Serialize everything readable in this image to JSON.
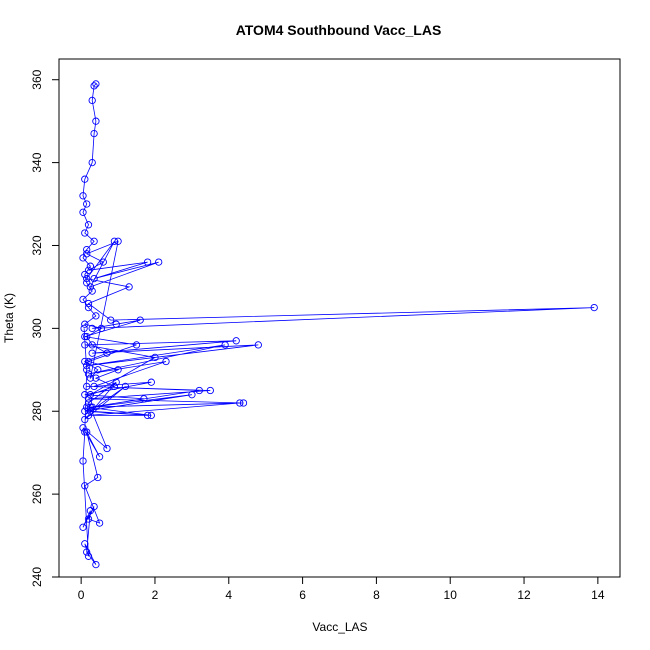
{
  "chart_data": {
    "type": "line",
    "title": "ATOM4 Southbound Vacc_LAS",
    "xlabel": "Vacc_LAS",
    "ylabel": "Theta (K)",
    "xlim": [
      -0.6,
      14.6
    ],
    "ylim": [
      240,
      365
    ],
    "xticks": [
      0,
      2,
      4,
      6,
      8,
      10,
      12,
      14
    ],
    "yticks": [
      240,
      260,
      280,
      300,
      320,
      340,
      360
    ],
    "grid": false,
    "legend": "none",
    "marker": "open-circle",
    "color": "#0000ff",
    "series": [
      {
        "x": [
          0.4,
          0.35,
          0.3,
          0.4,
          0.35,
          0.3,
          0.1,
          0.05,
          0.15,
          0.05,
          0.2,
          0.1,
          0.35,
          0.15,
          0.05,
          0.25,
          0.1,
          0.15,
          0.3,
          0.05,
          0.2,
          0.4,
          0.1,
          0.55,
          0.15,
          0.3,
          0.7,
          0.1,
          0.45,
          0.25,
          1.0,
          0.15,
          0.6,
          0.2,
          1.8,
          0.35,
          2.1,
          0.25,
          0.9,
          0.15,
          1.3,
          0.2,
          0.8,
          13.9,
          0.3,
          0.95,
          1.6,
          0.1,
          1.5,
          0.2,
          1.0,
          0.4,
          0.9,
          0.25,
          2.0,
          0.1,
          4.2,
          0.3,
          4.8,
          0.15,
          3.9,
          0.2,
          2.3,
          0.35,
          1.9,
          0.1,
          1.7,
          0.25,
          3.2,
          0.15,
          3.5,
          0.2,
          4.4,
          0.3,
          3.0,
          0.1,
          1.8,
          0.2,
          4.3,
          0.15,
          1.9,
          0.25,
          1.2,
          0.1,
          0.95,
          0.2,
          0.7,
          0.05,
          0.5,
          0.15,
          0.45,
          0.1,
          0.5,
          0.2,
          0.35,
          0.05,
          0.25,
          0.15,
          0.4,
          0.1,
          0.2,
          0.05,
          0.1,
          0.15,
          0.08
        ],
        "y": [
          359,
          358.5,
          355,
          350,
          347,
          340,
          336,
          332,
          330,
          328,
          325,
          323,
          321,
          319,
          317,
          315,
          313,
          311,
          309,
          307,
          305,
          303,
          301,
          300,
          298,
          296,
          294,
          292,
          290,
          288,
          321,
          318,
          316,
          314,
          316,
          312,
          316,
          310,
          321,
          312,
          310,
          306,
          302,
          305,
          300,
          301,
          302,
          298,
          296,
          292,
          290,
          288,
          286,
          284,
          293,
          296,
          297,
          294,
          296,
          291,
          296,
          289,
          292,
          286,
          287,
          284,
          283,
          281,
          285,
          286,
          285,
          283,
          282,
          281,
          284,
          280,
          279,
          279,
          282,
          281,
          279,
          280,
          286,
          278,
          287,
          282,
          271,
          276,
          269,
          275,
          264,
          262,
          253,
          254,
          257,
          252,
          256,
          246,
          243,
          248,
          245,
          268,
          275,
          290,
          300
        ]
      }
    ]
  }
}
